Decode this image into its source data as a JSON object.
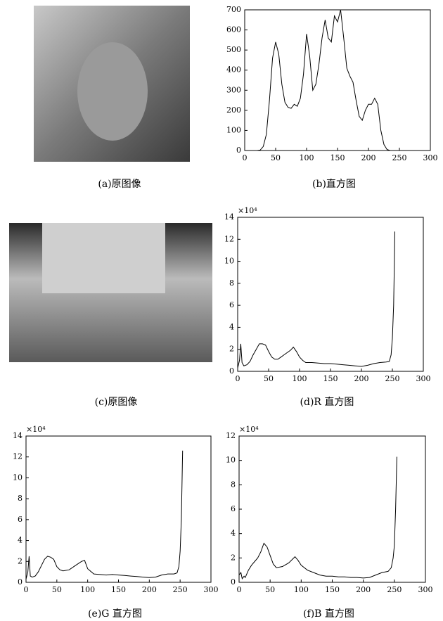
{
  "images": [
    {
      "caption": "(a)原图像"
    },
    {
      "caption": "(c)原图像"
    }
  ],
  "chart_data": [
    {
      "type": "line",
      "caption": "(b)直方图",
      "color": "#000000",
      "x": [
        20,
        25,
        30,
        35,
        40,
        45,
        50,
        55,
        60,
        65,
        70,
        75,
        80,
        85,
        90,
        95,
        100,
        105,
        110,
        115,
        120,
        125,
        130,
        135,
        140,
        145,
        150,
        155,
        160,
        165,
        170,
        175,
        180,
        185,
        190,
        195,
        200,
        205,
        210,
        215,
        220,
        225,
        230,
        235,
        240
      ],
      "values": [
        0,
        2,
        20,
        80,
        250,
        460,
        540,
        480,
        330,
        240,
        215,
        210,
        230,
        220,
        260,
        380,
        580,
        470,
        300,
        330,
        430,
        560,
        650,
        560,
        540,
        670,
        640,
        700,
        560,
        410,
        370,
        340,
        250,
        170,
        150,
        200,
        230,
        230,
        260,
        230,
        100,
        30,
        5,
        0,
        0
      ],
      "xlim": [
        0,
        300
      ],
      "xticks": [
        0,
        50,
        100,
        150,
        200,
        250,
        300
      ],
      "ylim": [
        0,
        700
      ],
      "yticks": [
        0,
        100,
        200,
        300,
        400,
        500,
        600,
        700
      ]
    },
    {
      "type": "line",
      "caption": "(d)R 直方图",
      "y_scale_label": "×10⁴",
      "color": "#000000",
      "x": [
        0,
        3,
        5,
        7,
        10,
        15,
        20,
        25,
        30,
        35,
        40,
        45,
        50,
        55,
        60,
        65,
        70,
        75,
        80,
        85,
        90,
        95,
        100,
        105,
        110,
        120,
        130,
        140,
        150,
        160,
        170,
        180,
        190,
        200,
        210,
        220,
        230,
        240,
        245,
        248,
        250,
        252,
        253,
        254
      ],
      "values": [
        0.3,
        1,
        2.5,
        0.8,
        0.5,
        0.6,
        0.9,
        1.5,
        2.0,
        2.5,
        2.5,
        2.4,
        1.8,
        1.3,
        1.1,
        1.1,
        1.3,
        1.5,
        1.7,
        1.9,
        2.2,
        1.8,
        1.3,
        1.0,
        0.8,
        0.8,
        0.75,
        0.7,
        0.7,
        0.65,
        0.6,
        0.55,
        0.5,
        0.45,
        0.55,
        0.7,
        0.8,
        0.85,
        0.9,
        1.5,
        3,
        6,
        9,
        12.7
      ],
      "xlim": [
        0,
        300
      ],
      "xticks": [
        0,
        50,
        100,
        150,
        200,
        250,
        300
      ],
      "ylim": [
        0,
        14
      ],
      "yticks": [
        0,
        2,
        4,
        6,
        8,
        10,
        12,
        14
      ]
    },
    {
      "type": "line",
      "caption": "(e)G 直方图",
      "y_scale_label": "×10⁴",
      "color": "#000000",
      "x": [
        0,
        3,
        5,
        7,
        10,
        15,
        20,
        25,
        30,
        35,
        40,
        45,
        50,
        55,
        60,
        70,
        80,
        90,
        95,
        100,
        110,
        120,
        130,
        140,
        150,
        160,
        170,
        180,
        190,
        200,
        210,
        220,
        230,
        240,
        245,
        248,
        250,
        252,
        254
      ],
      "values": [
        0.3,
        1,
        2.5,
        0.6,
        0.5,
        0.6,
        1,
        1.6,
        2.2,
        2.5,
        2.4,
        2.2,
        1.5,
        1.2,
        1.1,
        1.2,
        1.6,
        2.0,
        2.1,
        1.3,
        0.8,
        0.75,
        0.7,
        0.75,
        0.7,
        0.65,
        0.6,
        0.55,
        0.5,
        0.45,
        0.5,
        0.7,
        0.8,
        0.8,
        0.9,
        1.5,
        3,
        6,
        12.6
      ],
      "xlim": [
        0,
        300
      ],
      "xticks": [
        0,
        50,
        100,
        150,
        200,
        250,
        300
      ],
      "ylim": [
        0,
        14
      ],
      "yticks": [
        0,
        2,
        4,
        6,
        8,
        10,
        12,
        14
      ]
    },
    {
      "type": "line",
      "caption": "(f)B 直方图",
      "y_scale_label": "×10⁴",
      "color": "#000000",
      "x": [
        0,
        3,
        5,
        8,
        10,
        15,
        20,
        25,
        30,
        35,
        40,
        45,
        50,
        55,
        60,
        70,
        80,
        90,
        95,
        100,
        110,
        120,
        130,
        140,
        150,
        160,
        170,
        180,
        190,
        200,
        210,
        220,
        230,
        240,
        245,
        248,
        250,
        252,
        254
      ],
      "values": [
        0.6,
        0.8,
        0.3,
        0.5,
        0.4,
        1.0,
        1.4,
        1.7,
        2.0,
        2.5,
        3.2,
        2.9,
        2.2,
        1.5,
        1.2,
        1.3,
        1.6,
        2.1,
        1.8,
        1.4,
        1.0,
        0.8,
        0.6,
        0.5,
        0.5,
        0.45,
        0.45,
        0.4,
        0.4,
        0.35,
        0.4,
        0.6,
        0.8,
        0.9,
        1.2,
        2,
        3,
        6,
        10.3
      ],
      "xlim": [
        0,
        300
      ],
      "xticks": [
        0,
        50,
        100,
        150,
        200,
        250,
        300
      ],
      "ylim": [
        0,
        12
      ],
      "yticks": [
        0,
        2,
        4,
        6,
        8,
        10,
        12
      ]
    }
  ]
}
